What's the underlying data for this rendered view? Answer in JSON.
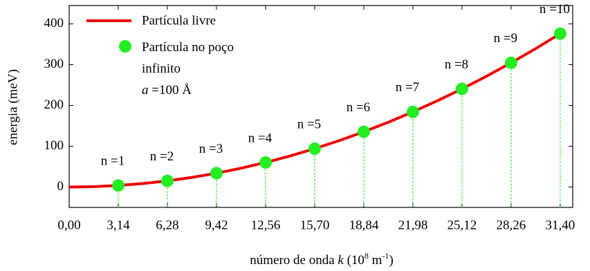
{
  "chart_data": {
    "type": "line-scatter",
    "xlabel_parts": [
      "número de onda ",
      "k",
      " (10",
      "8",
      " m",
      "-1",
      ")"
    ],
    "ylabel": "energia (meV)",
    "xlim": [
      0,
      32.2
    ],
    "ylim": [
      -50,
      445
    ],
    "xticks": [
      {
        "value": 0,
        "label": "0,00"
      },
      {
        "value": 3.14,
        "label": "3,14"
      },
      {
        "value": 6.28,
        "label": "6,28"
      },
      {
        "value": 9.42,
        "label": "9,42"
      },
      {
        "value": 12.56,
        "label": "12,56"
      },
      {
        "value": 15.7,
        "label": "15,70"
      },
      {
        "value": 18.84,
        "label": "18,84"
      },
      {
        "value": 21.98,
        "label": "21,98"
      },
      {
        "value": 25.12,
        "label": "25,12"
      },
      {
        "value": 28.26,
        "label": "28,26"
      },
      {
        "value": 31.4,
        "label": "31,40"
      }
    ],
    "yticks": [
      0,
      100,
      200,
      300,
      400
    ],
    "legend_note_symbol": "a",
    "legend_note": " =100 Å",
    "series": [
      {
        "name": "Partícula livre",
        "color": "#ee0000",
        "kind": "line",
        "x": [
          0,
          1.57,
          3.14,
          4.71,
          6.28,
          7.85,
          9.42,
          10.99,
          12.56,
          14.13,
          15.7,
          17.27,
          18.84,
          20.41,
          21.98,
          23.55,
          25.12,
          26.69,
          28.26,
          29.83,
          31.4
        ],
        "values": [
          0,
          0.94,
          3.76,
          8.46,
          15.04,
          23.5,
          33.84,
          46.06,
          60.16,
          76.14,
          94,
          113.74,
          135.36,
          158.86,
          184.24,
          211.5,
          240.64,
          271.66,
          304.56,
          339.34,
          376
        ]
      },
      {
        "name": "Partícula no poço infinito",
        "color": "#22ee22",
        "kind": "scatter",
        "x": [
          3.14,
          6.28,
          9.42,
          12.56,
          15.7,
          18.84,
          21.98,
          25.12,
          28.26,
          31.4
        ],
        "values": [
          3.76,
          15.04,
          33.84,
          60.16,
          94,
          135.36,
          184.24,
          240.64,
          304.56,
          376
        ],
        "point_labels": [
          "n =1",
          "n =2",
          "n =3",
          "n =4",
          "n =5",
          "n =6",
          "n =7",
          "n =8",
          "n =9",
          "n =10"
        ]
      }
    ]
  }
}
